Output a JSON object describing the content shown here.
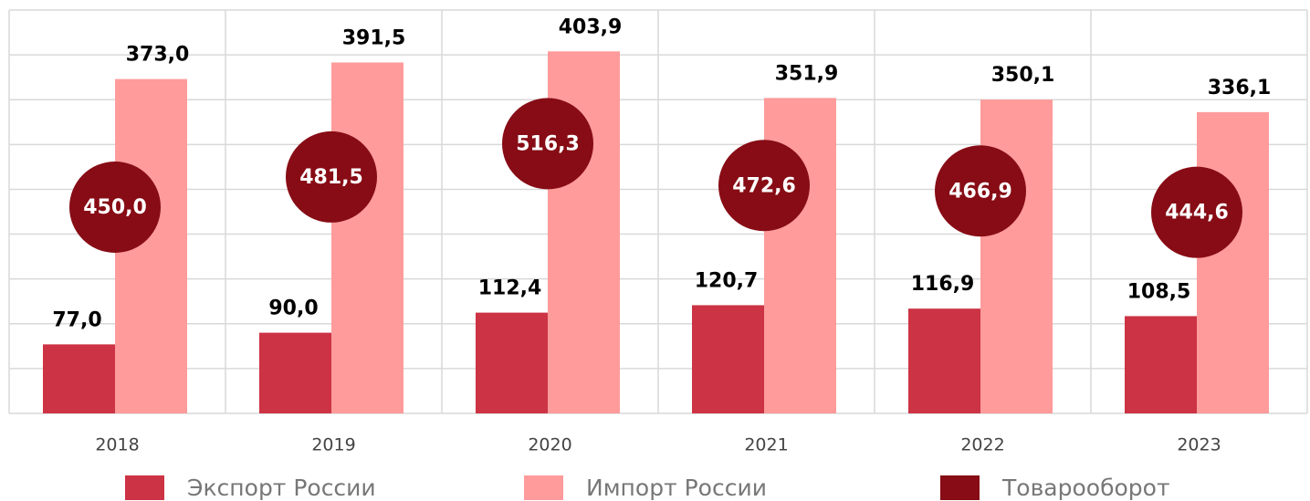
{
  "chart_data": {
    "type": "bar",
    "categories": [
      "2018",
      "2019",
      "2020",
      "2021",
      "2022",
      "2023"
    ],
    "series": [
      {
        "name": "Экспорт России",
        "color": "#cc3344",
        "values": [
          77.0,
          90.0,
          112.4,
          120.7,
          116.9,
          108.5
        ],
        "value_labels": [
          "77,0",
          "90,0",
          "112,4",
          "120,7",
          "116,9",
          "108,5"
        ]
      },
      {
        "name": "Импорт России",
        "color": "#ff9b9b",
        "values": [
          373.0,
          391.5,
          403.9,
          351.9,
          350.1,
          336.1
        ],
        "value_labels": [
          "373,0",
          "391,5",
          "403,9",
          "351,9",
          "350,1",
          "336,1"
        ]
      },
      {
        "name": "Товарооборот",
        "color": "#870c15",
        "values": [
          450.0,
          481.5,
          516.3,
          472.6,
          466.9,
          444.6
        ],
        "value_labels": [
          "450,0",
          "481,5",
          "516,3",
          "472,6",
          "466,9",
          "444,6"
        ]
      }
    ],
    "ylim": [
      0,
      450
    ],
    "yticks": [
      0,
      50,
      100,
      150,
      200,
      250,
      300,
      350,
      400,
      450
    ],
    "grid": true
  }
}
